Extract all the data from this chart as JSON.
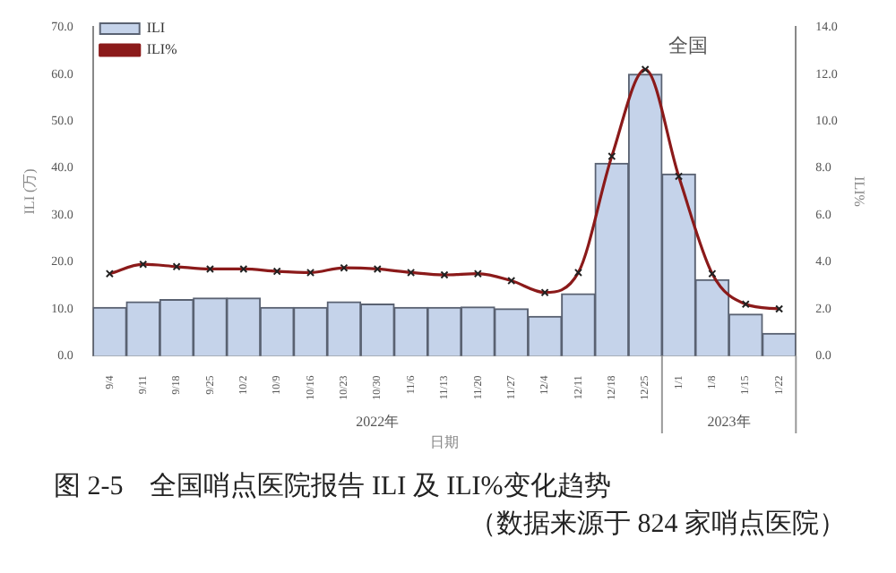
{
  "chart_data": {
    "type": "bar",
    "title": "全国",
    "xlabel": "日期",
    "ylabel": "ILI (万)",
    "y2label": "ILI%",
    "categories": [
      "9/4",
      "9/11",
      "9/18",
      "9/25",
      "10/2",
      "10/9",
      "10/16",
      "10/23",
      "10/30",
      "11/6",
      "11/13",
      "11/20",
      "11/27",
      "12/4",
      "12/11",
      "12/18",
      "12/25",
      "1/1",
      "1/8",
      "1/15",
      "1/22"
    ],
    "series": [
      {
        "name": "ILI",
        "color": "#c5d3ea",
        "values": [
          10.3,
          11.5,
          12,
          12.3,
          12.3,
          10.3,
          10.3,
          11.5,
          11,
          10.3,
          10.3,
          10.4,
          10,
          8.4,
          13.2,
          41,
          60,
          38.7,
          16.2,
          8.9,
          4.8
        ]
      },
      {
        "name": "ILI%",
        "type": "line",
        "axis": "y2",
        "color": "#8b1a1a",
        "values": [
          3.5,
          3.9,
          3.8,
          3.7,
          3.7,
          3.6,
          3.55,
          3.75,
          3.7,
          3.55,
          3.45,
          3.5,
          3.2,
          2.7,
          3.55,
          8.5,
          12.2,
          7.65,
          3.5,
          2.2,
          2.0
        ]
      }
    ],
    "ylim": [
      0,
      70
    ],
    "yticks": [
      {
        "value": 0,
        "label": "0.0"
      },
      {
        "value": 10,
        "label": "10.0"
      },
      {
        "value": 20,
        "label": "20.0"
      },
      {
        "value": 30,
        "label": "30.0"
      },
      {
        "value": 40,
        "label": "40.0"
      },
      {
        "value": 50,
        "label": "50.0"
      },
      {
        "value": 60,
        "label": "60.0"
      },
      {
        "value": 70,
        "label": "70.0"
      }
    ],
    "y2lim": [
      0,
      14
    ],
    "y2ticks": [
      {
        "value": 0,
        "label": "0.0"
      },
      {
        "value": 2,
        "label": "2.0"
      },
      {
        "value": 4,
        "label": "4.0"
      },
      {
        "value": 6,
        "label": "6.0"
      },
      {
        "value": 8,
        "label": "8.0"
      },
      {
        "value": 10,
        "label": "10.0"
      },
      {
        "value": 12,
        "label": "12.0"
      },
      {
        "value": 14,
        "label": "14.0"
      }
    ],
    "annotations": [
      "2022年",
      "2023年",
      "图 2-5　全国哨点医院报告 ILI 及 ILI%变化趋势",
      "（数据来源于 824 家哨点医院）"
    ],
    "grid": false,
    "legend": "top left",
    "marker": "cross",
    "line_style": "solid"
  }
}
